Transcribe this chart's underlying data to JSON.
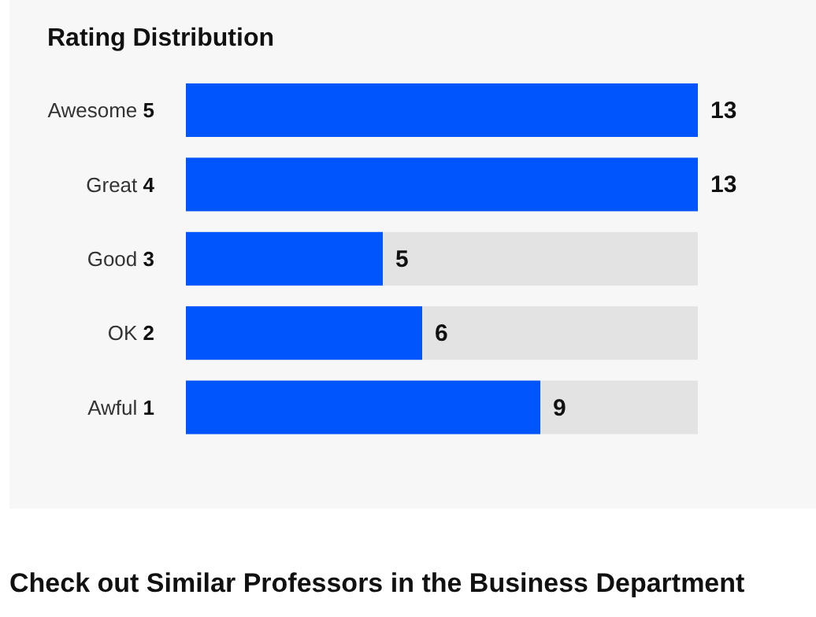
{
  "chart_data": {
    "type": "bar",
    "orientation": "horizontal",
    "title": "Rating Distribution",
    "categories": [
      "Awesome 5",
      "Great 4",
      "Good 3",
      "OK 2",
      "Awful 1"
    ],
    "values": [
      13,
      13,
      5,
      6,
      9
    ],
    "color": "#0055fd",
    "xlim": [
      0,
      13
    ],
    "tick_labels": "y",
    "data_labels": true,
    "annotations": [
      "Check out Similar Professors in the Business Department"
    ]
  }
}
